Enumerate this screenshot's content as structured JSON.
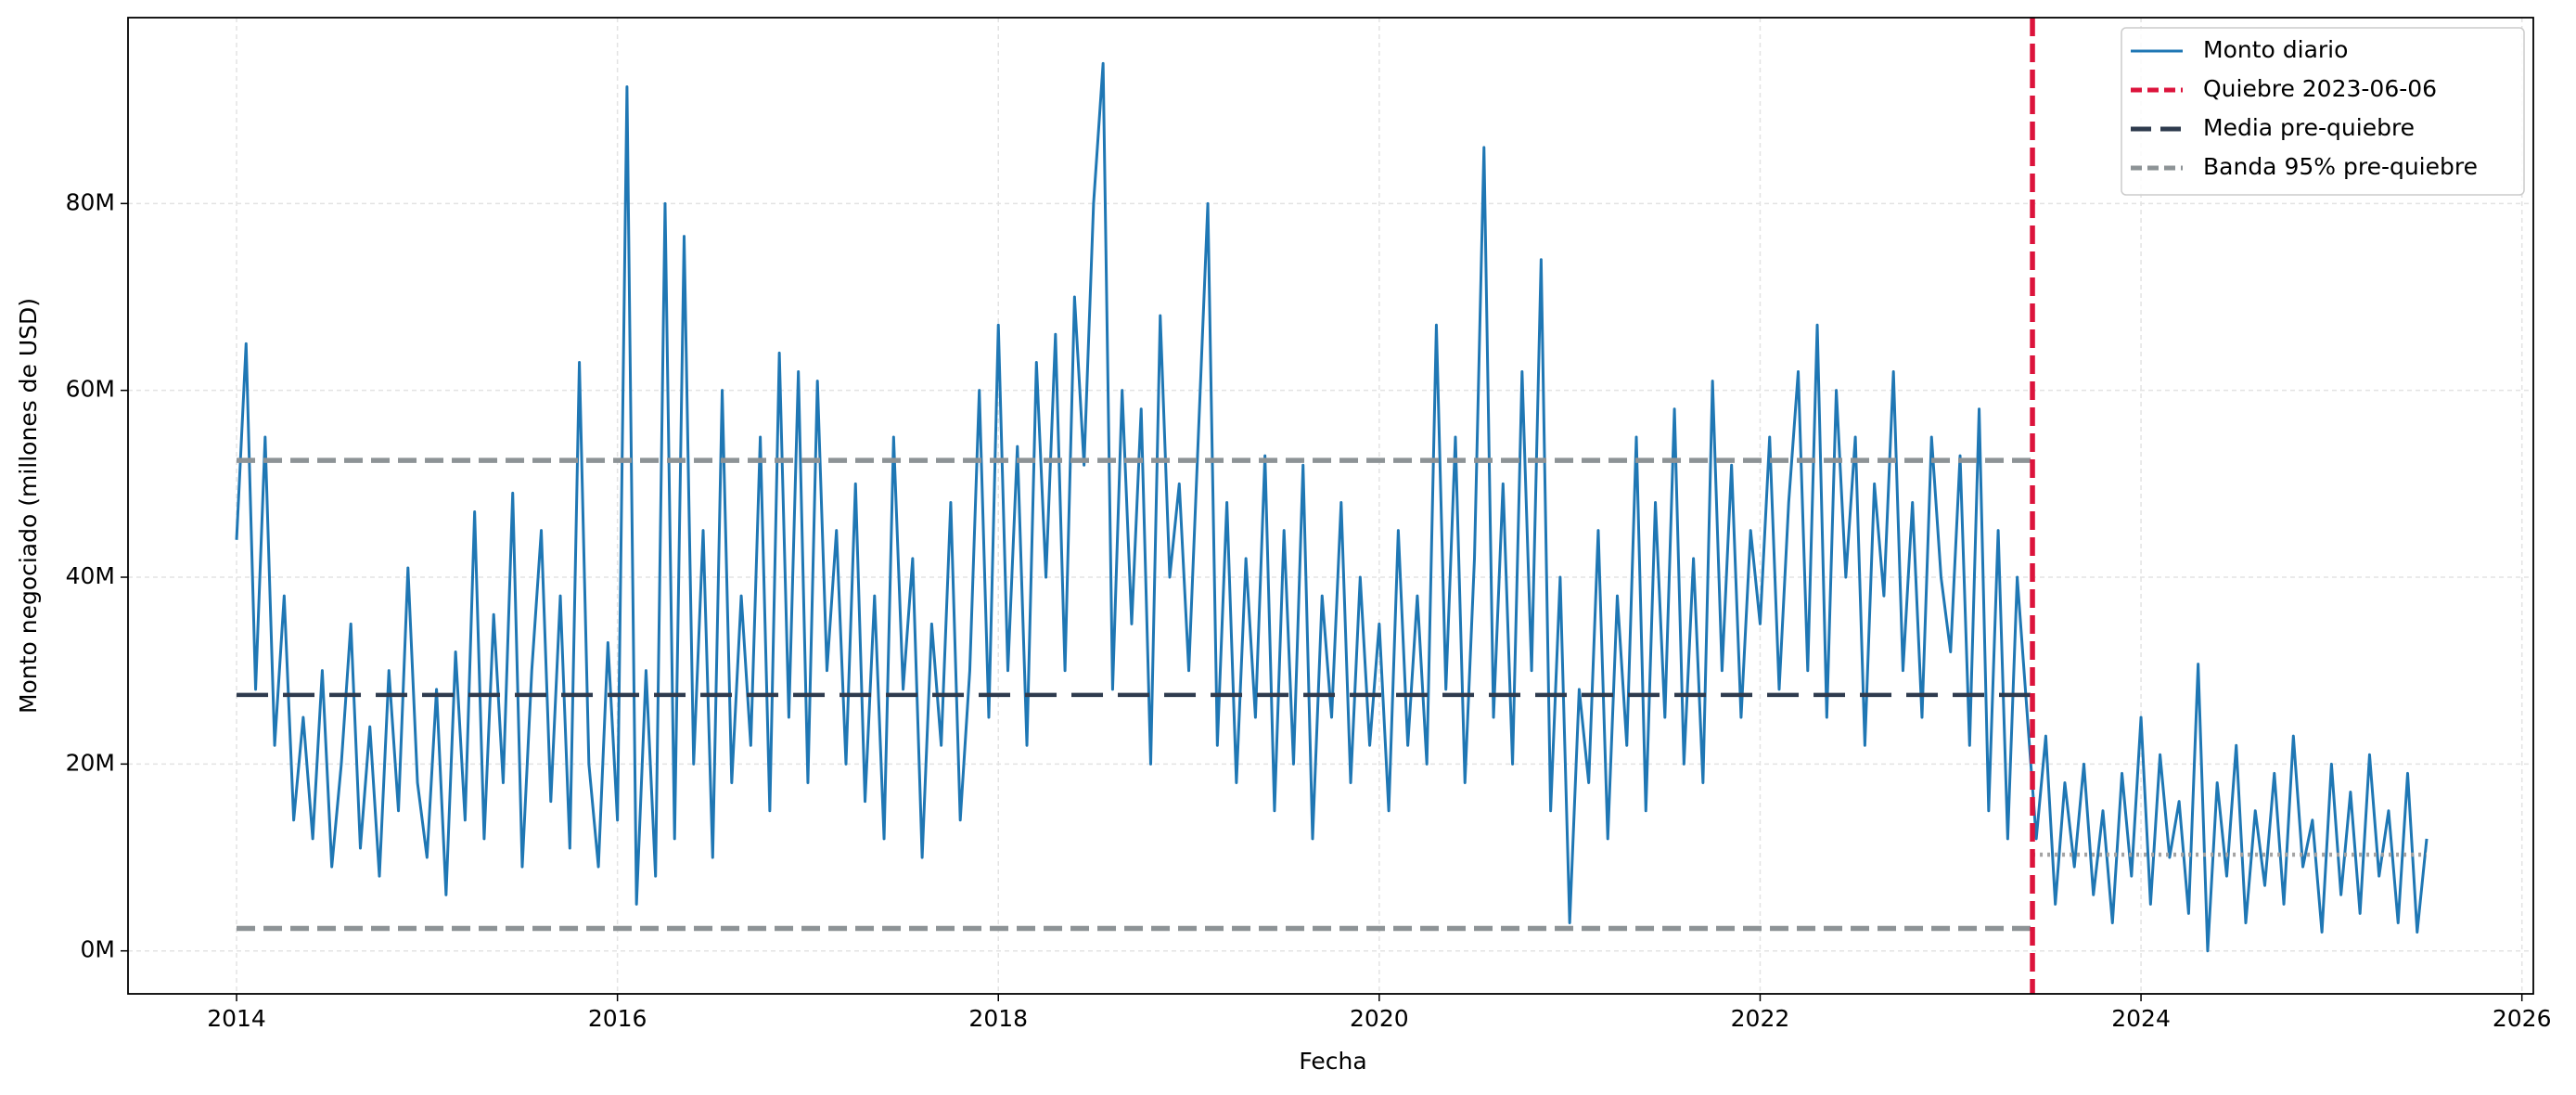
{
  "chart_data": {
    "type": "line",
    "xlabel": "Fecha",
    "ylabel": "Monto negociado (millones de USD)",
    "xlim": [
      2013.43,
      2026.06
    ],
    "ylim": [
      -4.6,
      99.9
    ],
    "xticks": [
      2014,
      2016,
      2018,
      2020,
      2022,
      2024,
      2026
    ],
    "yticks": [
      {
        "value": 0,
        "label": "0M"
      },
      {
        "value": 20,
        "label": "20M"
      },
      {
        "value": 40,
        "label": "40M"
      },
      {
        "value": 60,
        "label": "60M"
      },
      {
        "value": 80,
        "label": "80M"
      }
    ],
    "grid": true,
    "legend": "upper right",
    "x": [
      2014,
      2014.05,
      2014.1,
      2014.15,
      2014.2,
      2014.25,
      2014.3,
      2014.35,
      2014.4,
      2014.45,
      2014.5,
      2014.55,
      2014.6,
      2014.65,
      2014.7,
      2014.75,
      2014.8,
      2014.85,
      2014.9,
      2014.95,
      2015,
      2015.05,
      2015.1,
      2015.15,
      2015.2,
      2015.25,
      2015.3,
      2015.35,
      2015.4,
      2015.45,
      2015.5,
      2015.55,
      2015.6,
      2015.65,
      2015.7,
      2015.75,
      2015.8,
      2015.85,
      2015.9,
      2015.95,
      2016,
      2016.05,
      2016.1,
      2016.15,
      2016.2,
      2016.25,
      2016.3,
      2016.35,
      2016.4,
      2016.45,
      2016.5,
      2016.55,
      2016.6,
      2016.65,
      2016.7,
      2016.75,
      2016.8,
      2016.85,
      2016.9,
      2016.95,
      2017,
      2017.05,
      2017.1,
      2017.15,
      2017.2,
      2017.25,
      2017.3,
      2017.35,
      2017.4,
      2017.45,
      2017.5,
      2017.55,
      2017.6,
      2017.65,
      2017.7,
      2017.75,
      2017.8,
      2017.85,
      2017.9,
      2017.95,
      2018,
      2018.05,
      2018.1,
      2018.15,
      2018.2,
      2018.25,
      2018.3,
      2018.35,
      2018.4,
      2018.45,
      2018.5,
      2018.55,
      2018.6,
      2018.65,
      2018.7,
      2018.75,
      2018.8,
      2018.85,
      2018.9,
      2018.95,
      2019,
      2019.05,
      2019.1,
      2019.15,
      2019.2,
      2019.25,
      2019.3,
      2019.35,
      2019.4,
      2019.45,
      2019.5,
      2019.55,
      2019.6,
      2019.65,
      2019.7,
      2019.75,
      2019.8,
      2019.85,
      2019.9,
      2019.95,
      2020,
      2020.05,
      2020.1,
      2020.15,
      2020.2,
      2020.25,
      2020.3,
      2020.35,
      2020.4,
      2020.45,
      2020.5,
      2020.55,
      2020.6,
      2020.65,
      2020.7,
      2020.75,
      2020.8,
      2020.85,
      2020.9,
      2020.95,
      2021,
      2021.05,
      2021.1,
      2021.15,
      2021.2,
      2021.25,
      2021.3,
      2021.35,
      2021.4,
      2021.45,
      2021.5,
      2021.55,
      2021.6,
      2021.65,
      2021.7,
      2021.75,
      2021.8,
      2021.85,
      2021.9,
      2021.95,
      2022,
      2022.05,
      2022.1,
      2022.15,
      2022.2,
      2022.25,
      2022.3,
      2022.35,
      2022.4,
      2022.45,
      2022.5,
      2022.55,
      2022.6,
      2022.65,
      2022.7,
      2022.75,
      2022.8,
      2022.85,
      2022.9,
      2022.95,
      2023,
      2023.05,
      2023.1,
      2023.15,
      2023.2,
      2023.25,
      2023.3,
      2023.35,
      2023.4,
      2023.45,
      2023.5,
      2023.55,
      2023.6,
      2023.65,
      2023.7,
      2023.75,
      2023.8,
      2023.85,
      2023.9,
      2023.95,
      2024,
      2024.05,
      2024.1,
      2024.15,
      2024.2,
      2024.25,
      2024.3,
      2024.35,
      2024.4,
      2024.45,
      2024.5,
      2024.55,
      2024.6,
      2024.65,
      2024.7,
      2024.75,
      2024.8,
      2024.85,
      2024.9,
      2024.95,
      2025,
      2025.05,
      2025.1,
      2025.15,
      2025.2,
      2025.25,
      2025.3,
      2025.35,
      2025.4,
      2025.45,
      2025.5
    ],
    "series": [
      {
        "name": "Monto diario",
        "color": "#1f77b4",
        "values": [
          44,
          65,
          28,
          55,
          22,
          38,
          14,
          25,
          12,
          30,
          9,
          20,
          35,
          11,
          24,
          8,
          30,
          15,
          41,
          18,
          10,
          28,
          6,
          32,
          14,
          47,
          12,
          36,
          18,
          49,
          9,
          30,
          45,
          16,
          38,
          11,
          63,
          20,
          9,
          33,
          14,
          92.5,
          5,
          30,
          8,
          80,
          12,
          76.5,
          20,
          45,
          10,
          60,
          18,
          38,
          22,
          55,
          15,
          64,
          25,
          62,
          18,
          61,
          30,
          45,
          20,
          50,
          16,
          38,
          12,
          55,
          28,
          42,
          10,
          35,
          22,
          48,
          14,
          30,
          60,
          25,
          67,
          30,
          54,
          22,
          63,
          40,
          66,
          30,
          70,
          52,
          80,
          95,
          28,
          60,
          35,
          58,
          20,
          68,
          40,
          50,
          30,
          55,
          80,
          22,
          48,
          18,
          42,
          25,
          53,
          15,
          45,
          20,
          52,
          12,
          38,
          25,
          48,
          18,
          40,
          22,
          35,
          15,
          45,
          22,
          38,
          20,
          67,
          28,
          55,
          18,
          42,
          86,
          25,
          50,
          20,
          62,
          30,
          74,
          15,
          40,
          3,
          28,
          18,
          45,
          12,
          38,
          22,
          55,
          15,
          48,
          25,
          58,
          20,
          42,
          18,
          61,
          30,
          52,
          25,
          45,
          35,
          55,
          28,
          48,
          62,
          30,
          67,
          25,
          60,
          40,
          55,
          22,
          50,
          38,
          62,
          30,
          48,
          25,
          55,
          40,
          32,
          53,
          22,
          58,
          15,
          45,
          12,
          40,
          26,
          12,
          23,
          5,
          18,
          9,
          20,
          6,
          15,
          3,
          19,
          8,
          25,
          5,
          21,
          10,
          16,
          4,
          30.7,
          0,
          18,
          8,
          22,
          3,
          15,
          7,
          19,
          5,
          23,
          9,
          14,
          2,
          20,
          6,
          17,
          4,
          21,
          8,
          15,
          3,
          19,
          2,
          12
        ]
      }
    ],
    "break": {
      "name": "Quiebre 2023-06-06",
      "x": 2023.43,
      "color": "#dc143c"
    },
    "mean_pre": {
      "name": "Media pre-quiebre",
      "value": 27.4,
      "x": [
        2014,
        2023.43
      ],
      "color": "#2e3b4e"
    },
    "band_pre": {
      "name": "Banda 95% pre-quiebre",
      "values": [
        52.5,
        2.4
      ],
      "x": [
        2014,
        2023.43
      ],
      "color": "#8d9396"
    },
    "mean_post": {
      "value": 10.3,
      "x": [
        2023.43,
        2025.5
      ],
      "color": "#a3a3a3"
    }
  }
}
